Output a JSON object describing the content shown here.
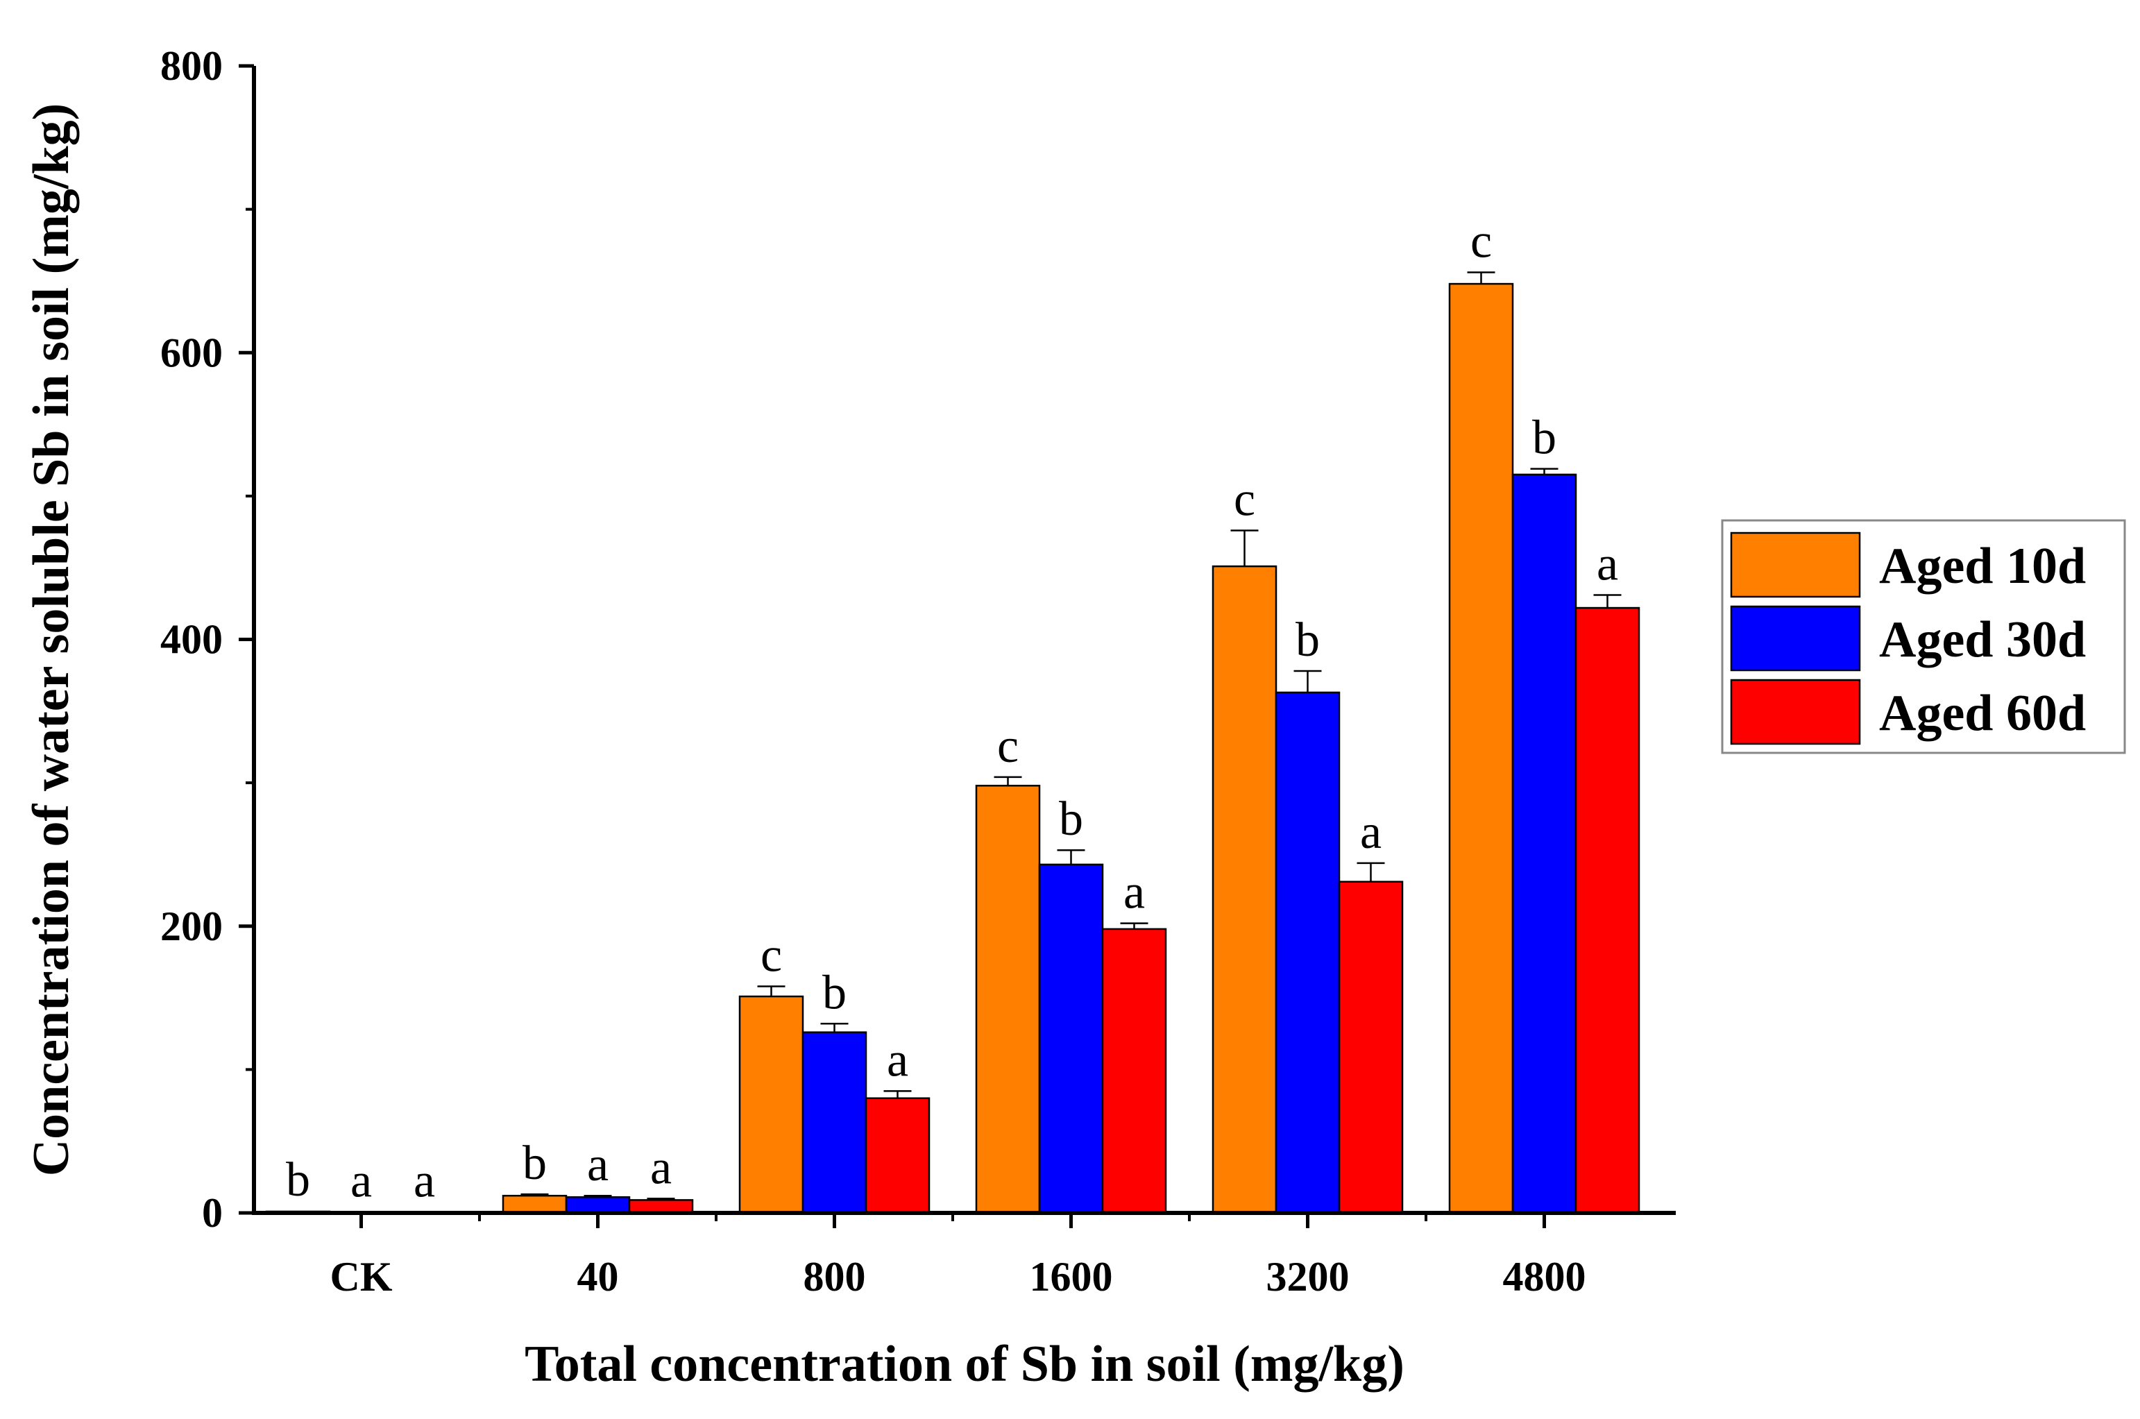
{
  "chart_data": {
    "type": "bar",
    "title": "",
    "xlabel": "Total concentration of Sb in soil (mg/kg)",
    "ylabel": "Concentration of water soluble Sb in soil (mg/kg)",
    "ylim": [
      0,
      800
    ],
    "yticks": [
      "0",
      "200",
      "400",
      "600",
      "800"
    ],
    "categories": [
      "CK",
      "40",
      "800",
      "1600",
      "3200",
      "4800"
    ],
    "grid": false,
    "legend_position": "right",
    "series": [
      {
        "name": "Aged 10d",
        "color": "#ff8000",
        "values": [
          1,
          12,
          151,
          298,
          451,
          648
        ],
        "errors": [
          0.5,
          1,
          7,
          6,
          25,
          8
        ],
        "letters": [
          "b",
          "b",
          "c",
          "c",
          "c",
          "c"
        ]
      },
      {
        "name": "Aged 30d",
        "color": "#0000ff",
        "values": [
          0.5,
          11,
          126,
          243,
          363,
          515
        ],
        "errors": [
          0.3,
          1,
          6,
          10,
          15,
          4
        ],
        "letters": [
          "a",
          "a",
          "b",
          "b",
          "b",
          "b"
        ]
      },
      {
        "name": "Aged 60d",
        "color": "#ff0000",
        "values": [
          0.5,
          9,
          80,
          198,
          231,
          422
        ],
        "errors": [
          0.3,
          1,
          5,
          4,
          13,
          9
        ],
        "letters": [
          "a",
          "a",
          "a",
          "a",
          "a",
          "a"
        ]
      }
    ]
  }
}
